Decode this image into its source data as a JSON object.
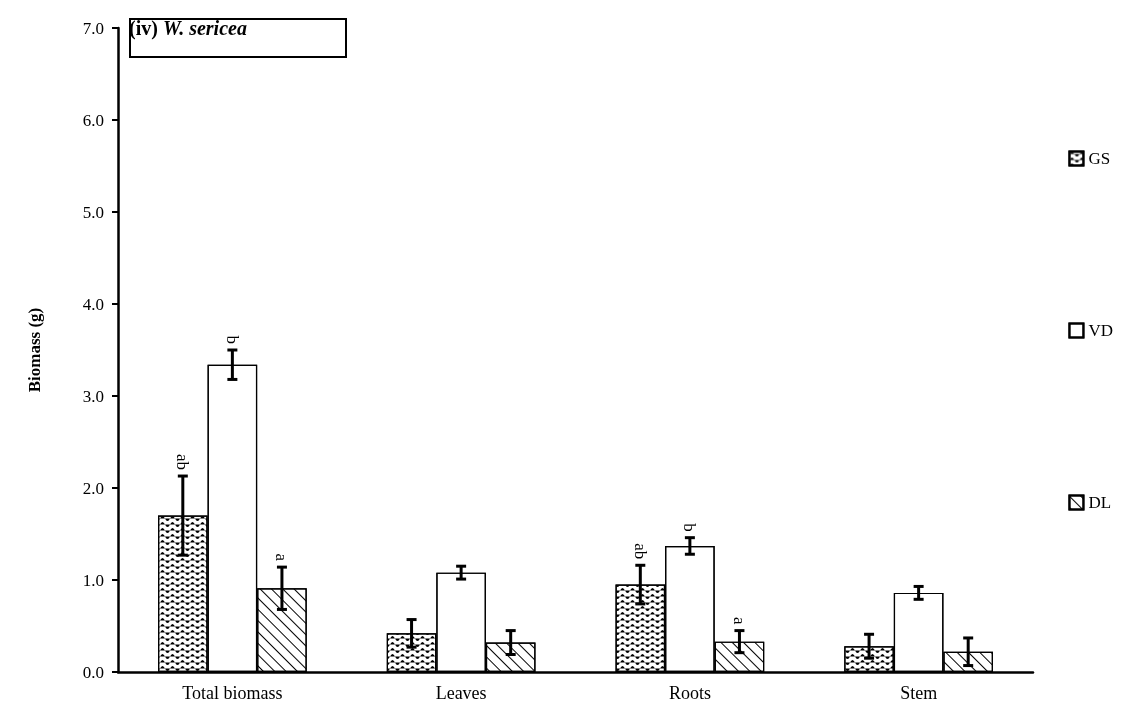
{
  "chart_data": {
    "type": "bar",
    "title": "(iv) W. sericea",
    "ylabel": "Biomass (g)",
    "categories": [
      "Total biomass",
      "Leaves",
      "Roots",
      "Stem"
    ],
    "series": [
      {
        "name": "GS",
        "color": "#ffffff",
        "values": [
          1.7,
          0.42,
          0.95,
          0.28
        ],
        "errors": [
          0.43,
          0.15,
          0.21,
          0.13
        ],
        "value_labels": [
          "ab",
          null,
          "ab",
          null
        ]
      },
      {
        "name": "VD",
        "color": "#ffffff",
        "values": [
          3.34,
          1.08,
          1.37,
          0.86
        ],
        "errors": [
          0.16,
          0.07,
          0.09,
          0.07
        ],
        "value_labels": [
          "b",
          null,
          "b",
          null
        ]
      },
      {
        "name": "DL",
        "color": "#ffffff",
        "values": [
          0.91,
          0.32,
          0.33,
          0.22
        ],
        "errors": [
          0.23,
          0.13,
          0.12,
          0.15
        ],
        "value_labels": [
          "a",
          null,
          "a",
          null
        ]
      }
    ],
    "ylim": [
      0,
      7
    ],
    "yticks": [
      {
        "value": 0,
        "label": "0.0"
      },
      {
        "value": 1,
        "label": "1.0"
      },
      {
        "value": 2,
        "label": "2.0"
      },
      {
        "value": 3,
        "label": "3.0"
      },
      {
        "value": 4,
        "label": "4.0"
      },
      {
        "value": 5,
        "label": "5.0"
      },
      {
        "value": 6,
        "label": "6.0"
      },
      {
        "value": 7,
        "label": "7.0"
      }
    ],
    "grid": false,
    "legend": "right"
  }
}
